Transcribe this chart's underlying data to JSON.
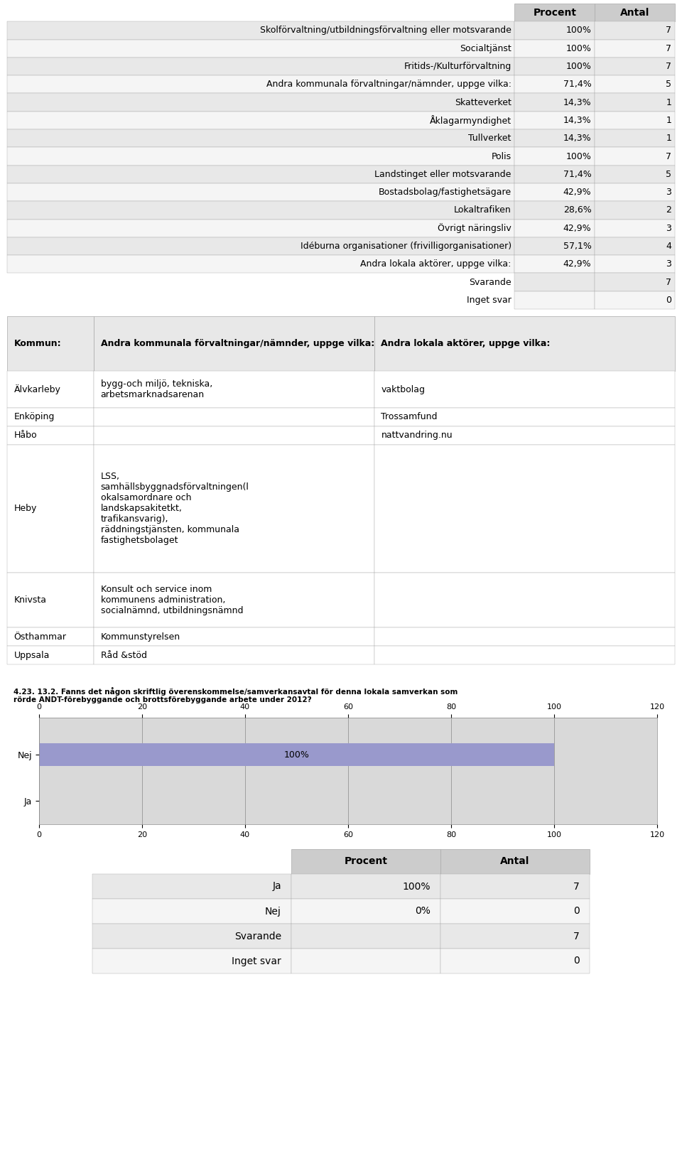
{
  "table1_headers": [
    "",
    "Procent",
    "Antal"
  ],
  "table1_rows": [
    [
      "Skolförvaltning/utbildningsförvaltning eller motsvarande",
      "100%",
      "7"
    ],
    [
      "Socialtjänst",
      "100%",
      "7"
    ],
    [
      "Fritids-/Kulturförvaltning",
      "100%",
      "7"
    ],
    [
      "Andra kommunala förvaltningar/nämnder, uppge vilka:",
      "71,4%",
      "5"
    ],
    [
      "Skatteverket",
      "14,3%",
      "1"
    ],
    [
      "Åklagarmyndighet",
      "14,3%",
      "1"
    ],
    [
      "Tullverket",
      "14,3%",
      "1"
    ],
    [
      "Polis",
      "100%",
      "7"
    ],
    [
      "Landstinget eller motsvarande",
      "71,4%",
      "5"
    ],
    [
      "Bostadsbolag/fastighetsägare",
      "42,9%",
      "3"
    ],
    [
      "Lokaltrafiken",
      "28,6%",
      "2"
    ],
    [
      "Övrigt näringsliv",
      "42,9%",
      "3"
    ],
    [
      "Idéburna organisationer (frivilligorganisationer)",
      "57,1%",
      "4"
    ],
    [
      "Andra lokala aktörer, uppge vilka:",
      "42,9%",
      "3"
    ],
    [
      "Svarande",
      "",
      "7"
    ],
    [
      "Inget svar",
      "",
      "0"
    ]
  ],
  "table2_headers": [
    "Kommun:",
    "Andra kommunala förvaltningar/nämnder, uppge vilka:",
    "Andra lokala aktörer, uppge vilka:"
  ],
  "table2_rows": [
    [
      "Älvkarleby",
      "bygg-och miljö, tekniska,\narbetsmarknadsarenan",
      "vaktbolag"
    ],
    [
      "Enköping",
      "",
      "Trossamfund"
    ],
    [
      "Håbo",
      "",
      "nattvandring.nu"
    ],
    [
      "Heby",
      "LSS,\nsamhällsbyggnadsförvaltningen(l\nokalsamordnare och\nlandskapsakitetkt,\ntrafikansvarig),\nräddningstjänsten, kommunala\nfastighetsbolaget",
      ""
    ],
    [
      "Knivsta",
      "Konsult och service inom\nkommunens administration,\nsocialnämnd, utbildningsnämnd",
      ""
    ],
    [
      "Östhammar",
      "Kommunstyrelsen",
      ""
    ],
    [
      "Uppsala",
      "Råd &stöd",
      ""
    ]
  ],
  "chart_title": "4.23. 13.2. Fanns det någon skriftlig överenskommelse/samverkansavtal för denna lokala samverkan som\nrörde ANDT-förebyggande och brottsförebyggande arbete under 2012?",
  "bar_label": "100%",
  "bar_value": 100,
  "bar_max": 120,
  "bar_color": "#9999cc",
  "x_ticks": [
    0,
    20,
    40,
    60,
    80,
    100,
    120
  ],
  "y_labels": [
    "Ja",
    "Nej"
  ],
  "table3_headers": [
    "",
    "Procent",
    "Antal"
  ],
  "table3_rows": [
    [
      "Ja",
      "100%",
      "7"
    ],
    [
      "Nej",
      "0%",
      "0"
    ],
    [
      "Svarande",
      "",
      "7"
    ],
    [
      "Inget svar",
      "",
      "0"
    ]
  ],
  "bg_color": "#ffffff",
  "table_header_bg": "#cccccc",
  "table_row_bg_odd": "#e8e8e8",
  "table_row_bg_even": "#f5f5f5",
  "chart_bg": "#d9d9d9",
  "border_color": "#aaaaaa"
}
